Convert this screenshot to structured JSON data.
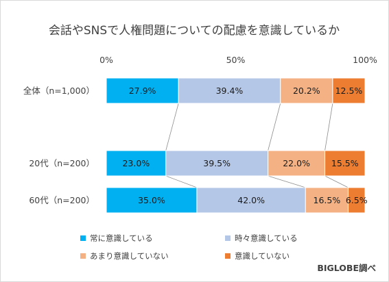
{
  "chart_data": {
    "type": "bar",
    "orientation": "horizontal",
    "stacked": "percent",
    "title": "会話やSNSで人権問題についての配慮を意識しているか",
    "categories": [
      "全体（n=1,000）",
      "20代（n=200）",
      "60代（n=200）"
    ],
    "series": [
      {
        "name": "常に意識している",
        "color": "#00b0f0",
        "values": [
          27.9,
          23.0,
          35.0
        ]
      },
      {
        "name": "時々意識している",
        "color": "#b4c7e7",
        "values": [
          39.4,
          39.5,
          42.0
        ]
      },
      {
        "name": "あまり意識していない",
        "color": "#f4b183",
        "values": [
          20.2,
          22.0,
          16.5
        ]
      },
      {
        "name": "意識していない",
        "color": "#ed7d31",
        "values": [
          12.5,
          15.5,
          6.5
        ]
      }
    ],
    "xticks": [
      "0%",
      "50%",
      "100%"
    ],
    "xlim": [
      0,
      100
    ],
    "legend_position": "bottom",
    "grid": false,
    "series_lines": true
  },
  "source": "BIGLOBE調べ"
}
